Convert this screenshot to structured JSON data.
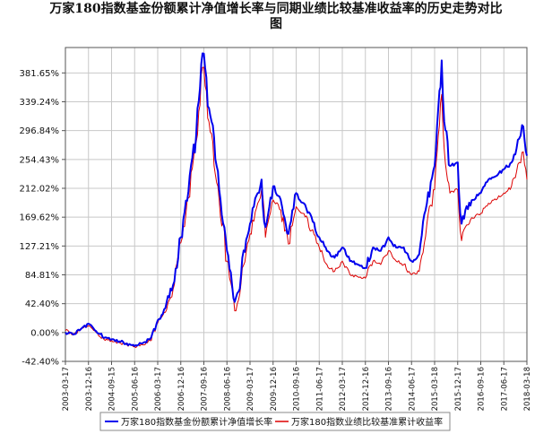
{
  "chart_data": {
    "type": "line",
    "title_lines": [
      "万家180指数基金份额累计净值增长率与同期业绩比较基准收益率的历史走势对比",
      "图"
    ],
    "xlabel": "",
    "ylabel": "",
    "x_tick_labels": [
      "2003-03-17",
      "2003-12-16",
      "2004-09-15",
      "2005-06-16",
      "2006-03-17",
      "2006-12-16",
      "2007-09-16",
      "2008-06-16",
      "2009-03-17",
      "2009-12-16",
      "2010-09-16",
      "2011-06-17",
      "2012-03-17",
      "2012-12-16",
      "2013-09-16",
      "2014-06-17",
      "2015-03-18",
      "2015-12-17",
      "2016-09-16",
      "2017-06-17",
      "2018-03-18"
    ],
    "y_tick_labels": [
      "-42.40%",
      "0.00%",
      "42.40%",
      "84.81%",
      "127.21%",
      "169.62%",
      "212.02%",
      "254.43%",
      "296.84%",
      "339.24%",
      "381.65%"
    ],
    "y_ticks": [
      -42.4,
      0.0,
      42.4,
      84.81,
      127.21,
      169.62,
      212.02,
      254.43,
      296.84,
      339.24,
      381.65
    ],
    "ylim": [
      -42.4,
      419.0
    ],
    "grid": true,
    "legend_position": "bottom",
    "x": [
      "2003-03-17",
      "2003-06-17",
      "2003-09-16",
      "2003-12-16",
      "2004-03-16",
      "2004-06-16",
      "2004-09-15",
      "2004-12-16",
      "2005-03-16",
      "2005-06-16",
      "2005-09-16",
      "2005-12-16",
      "2006-03-17",
      "2006-06-16",
      "2006-09-16",
      "2006-12-16",
      "2007-03-17",
      "2007-06-17",
      "2007-07-17",
      "2007-08-16",
      "2007-09-16",
      "2007-10-16",
      "2007-11-16",
      "2007-12-16",
      "2008-03-16",
      "2008-06-16",
      "2008-09-16",
      "2008-11-01",
      "2008-12-16",
      "2009-03-17",
      "2009-06-17",
      "2009-08-01",
      "2009-09-16",
      "2009-12-16",
      "2010-03-17",
      "2010-06-17",
      "2010-09-16",
      "2010-12-16",
      "2011-03-17",
      "2011-06-17",
      "2011-09-16",
      "2011-12-16",
      "2012-03-17",
      "2012-06-16",
      "2012-09-16",
      "2012-12-16",
      "2013-03-17",
      "2013-06-16",
      "2013-09-16",
      "2013-12-16",
      "2014-03-17",
      "2014-06-17",
      "2014-09-16",
      "2014-12-16",
      "2015-03-18",
      "2015-05-01",
      "2015-06-10",
      "2015-07-10",
      "2015-09-16",
      "2015-12-17",
      "2016-02-01",
      "2016-03-17",
      "2016-06-16",
      "2016-09-16",
      "2016-12-16",
      "2017-03-17",
      "2017-06-17",
      "2017-09-16",
      "2017-12-16",
      "2018-01-20",
      "2018-03-18"
    ],
    "series": [
      {
        "name": "万家180指数基金份额累计净值增长率",
        "color": "#0000ee",
        "values": [
          0,
          -3,
          5,
          13,
          2,
          -8,
          -10,
          -13,
          -16,
          -20,
          -16,
          -10,
          18,
          36,
          70,
          140,
          208,
          290,
          340,
          395,
          410,
          375,
          330,
          310,
          210,
          120,
          45,
          60,
          110,
          160,
          205,
          225,
          155,
          215,
          195,
          145,
          205,
          190,
          170,
          140,
          120,
          110,
          125,
          105,
          100,
          95,
          125,
          120,
          140,
          125,
          125,
          105,
          115,
          190,
          245,
          330,
          400,
          310,
          245,
          250,
          160,
          180,
          195,
          205,
          225,
          230,
          240,
          250,
          285,
          305,
          260
        ],
        "line_width": 2
      },
      {
        "name": "万家180指数业绩比较基准累计收益率",
        "color": "#dd0000",
        "values": [
          3,
          -2,
          4,
          10,
          0,
          -10,
          -12,
          -15,
          -18,
          -21,
          -18,
          -12,
          14,
          30,
          64,
          132,
          198,
          280,
          325,
          380,
          390,
          355,
          310,
          292,
          195,
          105,
          32,
          48,
          95,
          145,
          190,
          210,
          140,
          195,
          180,
          130,
          185,
          175,
          150,
          125,
          100,
          90,
          105,
          85,
          82,
          80,
          105,
          100,
          120,
          105,
          100,
          85,
          90,
          160,
          210,
          290,
          350,
          270,
          205,
          210,
          135,
          155,
          168,
          175,
          190,
          195,
          205,
          215,
          250,
          265,
          225
        ],
        "line_width": 1
      }
    ]
  }
}
